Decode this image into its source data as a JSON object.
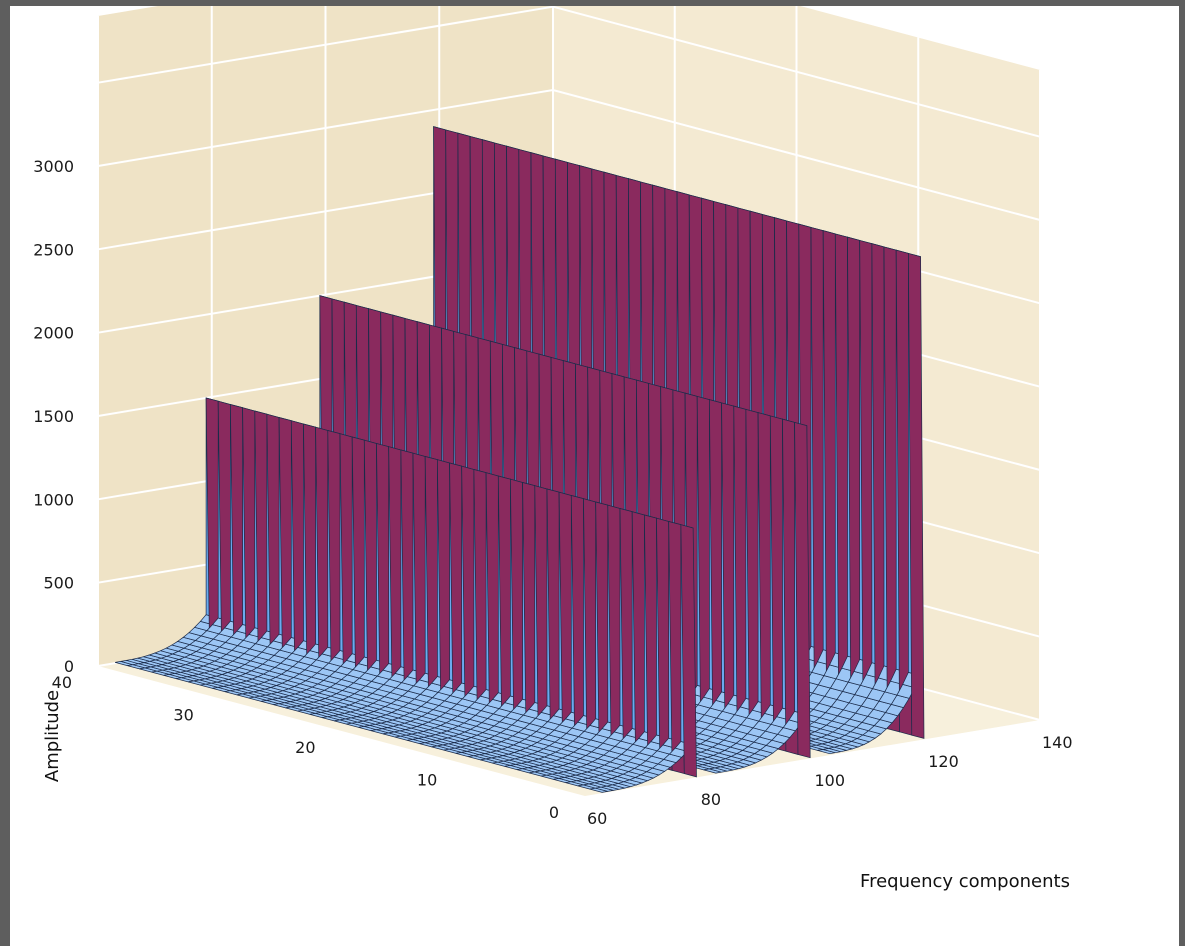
{
  "chart_data": {
    "type": "surface3d",
    "title": "",
    "xlabel": "Frequency components",
    "ylabel": "",
    "zlabel": "Amplitude",
    "x_ticks": [
      "60",
      "80",
      "100",
      "120",
      "140"
    ],
    "y_ticks": [
      "0",
      "10",
      "20",
      "30",
      "40"
    ],
    "z_ticks": [
      "0",
      "500",
      "1000",
      "1500",
      "2000",
      "2500",
      "3000"
    ],
    "xlim": [
      60,
      140
    ],
    "ylim": [
      0,
      40
    ],
    "zlim": [
      0,
      3000
    ],
    "peaks": [
      {
        "frequency": 79,
        "amplitude": 1500,
        "y_range": [
          0,
          40
        ]
      },
      {
        "frequency": 99,
        "amplitude": 2000,
        "y_range": [
          0,
          40
        ]
      },
      {
        "frequency": 119,
        "amplitude": 2900,
        "y_range": [
          0,
          40
        ]
      }
    ],
    "surface_color": "#6aaaf0",
    "ridge_side_color": "#8a2a5e",
    "wall_color": "#efe3c6",
    "floor_color": "#f7f0dc",
    "grid": true
  }
}
